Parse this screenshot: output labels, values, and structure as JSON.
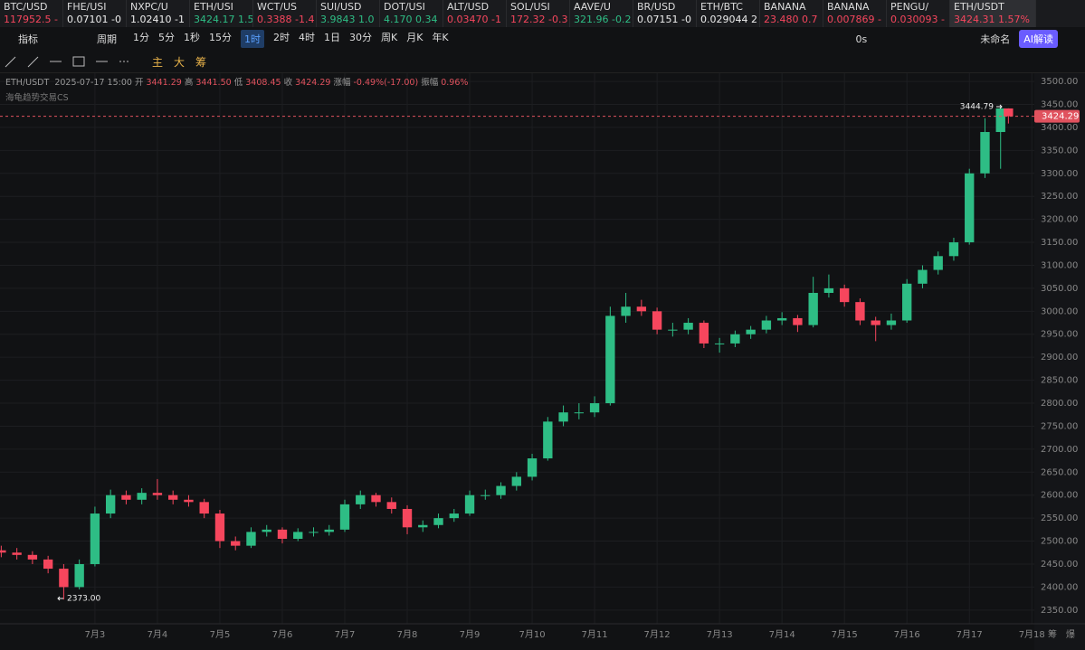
{
  "tabs": [
    {
      "symbol": "BTC/USD",
      "quote": "117952.5 -",
      "trend": "down"
    },
    {
      "symbol": "FHE/USI",
      "quote": "0.07101 -0",
      "trend": "flat"
    },
    {
      "symbol": "NXPC/U",
      "quote": "1.02410 -1",
      "trend": "flat"
    },
    {
      "symbol": "ETH/USI",
      "quote": "3424.17 1.5",
      "trend": "up"
    },
    {
      "symbol": "WCT/US",
      "quote": "0.3388 -1.4",
      "trend": "down"
    },
    {
      "symbol": "SUI/USD",
      "quote": "3.9843 1.0",
      "trend": "up"
    },
    {
      "symbol": "DOT/USI",
      "quote": "4.170 0.34",
      "trend": "up"
    },
    {
      "symbol": "ALT/USD",
      "quote": "0.03470 -1",
      "trend": "down"
    },
    {
      "symbol": "SOL/USI",
      "quote": "172.32 -0.3",
      "trend": "down"
    },
    {
      "symbol": "AAVE/U",
      "quote": "321.96 -0.2",
      "trend": "up"
    },
    {
      "symbol": "BR/USD",
      "quote": "0.07151 -0",
      "trend": "flat"
    },
    {
      "symbol": "ETH/BTC",
      "quote": "0.029044 2",
      "trend": "flat"
    },
    {
      "symbol": "BANANA",
      "quote": "23.480 0.7",
      "trend": "down"
    },
    {
      "symbol": "BANANA",
      "quote": "0.007869 -",
      "trend": "down"
    },
    {
      "symbol": "PENGU/",
      "quote": "0.030093 -",
      "trend": "down"
    },
    {
      "symbol": "ETH/USDT",
      "quote": "3424.31 1.57%",
      "trend": "down"
    }
  ],
  "toolbar": {
    "indicators": "指标",
    "period": "周期",
    "periods": [
      "1分",
      "5分",
      "1秒",
      "15分",
      "1时",
      "2时",
      "4时",
      "1日",
      "30分",
      "周K",
      "月K",
      "年K"
    ],
    "active_period_index": 4,
    "timer": "0s",
    "layout_name": "未命名",
    "ai_button": "AI解读",
    "drawing_tools": [
      "主",
      "大",
      "筹"
    ]
  },
  "info": {
    "pair": "ETH/USDT",
    "time": "2025-07-17 15:00",
    "open_label": "开",
    "open": "3441.29",
    "high_label": "高",
    "high": "3441.50",
    "low_label": "低",
    "low": "3408.45",
    "close_label": "收",
    "close": "3424.29",
    "change_label": "涨幅",
    "change": "-0.49%(-17.00)",
    "amplitude_label": "振幅",
    "amplitude": "0.96%",
    "indicator": "海龟趋势交易CS"
  },
  "chart_data": {
    "type": "candlestick",
    "up_color": "#2ebd85",
    "down_color": "#f6465d",
    "x": [
      1.5,
      1.75,
      2,
      2.25,
      2.5,
      2.75,
      3,
      3.25,
      3.5,
      3.75,
      4,
      4.25,
      4.5,
      4.75,
      5,
      5.25,
      5.5,
      5.75,
      6,
      6.25,
      6.5,
      6.75,
      7,
      7.25,
      7.5,
      7.75,
      8,
      8.25,
      8.5,
      8.75,
      9,
      9.25,
      9.5,
      9.75,
      10,
      10.25,
      10.5,
      10.75,
      11,
      11.25,
      11.5,
      11.75,
      12,
      12.25,
      12.5,
      12.75,
      13,
      13.25,
      13.5,
      13.75,
      14,
      14.25,
      14.5,
      14.75,
      15,
      15.25,
      15.5,
      15.75,
      16,
      16.25,
      16.5,
      16.75,
      17,
      17.25,
      17.5,
      17.625
    ],
    "candles": [
      [
        2480,
        2490,
        2465,
        2475
      ],
      [
        2475,
        2485,
        2460,
        2470
      ],
      [
        2470,
        2478,
        2450,
        2460
      ],
      [
        2460,
        2468,
        2430,
        2440
      ],
      [
        2440,
        2450,
        2373,
        2400
      ],
      [
        2400,
        2460,
        2395,
        2450
      ],
      [
        2450,
        2575,
        2445,
        2560
      ],
      [
        2560,
        2612,
        2550,
        2600
      ],
      [
        2600,
        2610,
        2580,
        2590
      ],
      [
        2590,
        2615,
        2580,
        2605
      ],
      [
        2605,
        2635,
        2590,
        2600
      ],
      [
        2600,
        2610,
        2580,
        2590
      ],
      [
        2590,
        2600,
        2575,
        2585
      ],
      [
        2585,
        2592,
        2550,
        2560
      ],
      [
        2560,
        2568,
        2485,
        2500
      ],
      [
        2500,
        2510,
        2480,
        2490
      ],
      [
        2490,
        2530,
        2485,
        2520
      ],
      [
        2520,
        2535,
        2510,
        2525
      ],
      [
        2525,
        2530,
        2495,
        2505
      ],
      [
        2505,
        2528,
        2500,
        2520
      ],
      [
        2520,
        2530,
        2510,
        2520
      ],
      [
        2520,
        2535,
        2512,
        2525
      ],
      [
        2525,
        2590,
        2520,
        2580
      ],
      [
        2580,
        2610,
        2570,
        2600
      ],
      [
        2600,
        2605,
        2575,
        2585
      ],
      [
        2585,
        2595,
        2560,
        2570
      ],
      [
        2570,
        2578,
        2515,
        2530
      ],
      [
        2530,
        2545,
        2520,
        2535
      ],
      [
        2535,
        2560,
        2528,
        2550
      ],
      [
        2550,
        2570,
        2542,
        2560
      ],
      [
        2560,
        2610,
        2555,
        2600
      ],
      [
        2600,
        2612,
        2590,
        2600
      ],
      [
        2600,
        2628,
        2592,
        2620
      ],
      [
        2620,
        2650,
        2610,
        2640
      ],
      [
        2640,
        2690,
        2632,
        2680
      ],
      [
        2680,
        2770,
        2675,
        2760
      ],
      [
        2760,
        2795,
        2750,
        2780
      ],
      [
        2780,
        2800,
        2765,
        2780
      ],
      [
        2780,
        2815,
        2770,
        2800
      ],
      [
        2800,
        3010,
        2795,
        2990
      ],
      [
        2990,
        3040,
        2975,
        3010
      ],
      [
        3010,
        3025,
        2990,
        3000
      ],
      [
        3000,
        3008,
        2950,
        2960
      ],
      [
        2960,
        2975,
        2945,
        2960
      ],
      [
        2960,
        2985,
        2950,
        2975
      ],
      [
        2975,
        2980,
        2920,
        2930
      ],
      [
        2930,
        2942,
        2910,
        2930
      ],
      [
        2930,
        2958,
        2922,
        2950
      ],
      [
        2950,
        2968,
        2940,
        2960
      ],
      [
        2960,
        2990,
        2952,
        2980
      ],
      [
        2980,
        2998,
        2970,
        2985
      ],
      [
        2985,
        2992,
        2955,
        2970
      ],
      [
        2970,
        3075,
        2965,
        3040
      ],
      [
        3040,
        3080,
        3030,
        3050
      ],
      [
        3050,
        3058,
        3010,
        3020
      ],
      [
        3020,
        3028,
        2970,
        2980
      ],
      [
        2980,
        2988,
        2935,
        2970
      ],
      [
        2970,
        2995,
        2960,
        2980
      ],
      [
        2980,
        3070,
        2975,
        3060
      ],
      [
        3060,
        3100,
        3050,
        3090
      ],
      [
        3090,
        3130,
        3080,
        3120
      ],
      [
        3120,
        3160,
        3110,
        3150
      ],
      [
        3150,
        3310,
        3145,
        3300
      ],
      [
        3300,
        3420,
        3290,
        3390
      ],
      [
        3390,
        3444.79,
        3310,
        3441.29
      ],
      [
        3441.29,
        3441.5,
        3408.45,
        3424.29
      ]
    ],
    "last_price": 3424.29,
    "high_marker": "3444.79",
    "low_marker": "2373.00",
    "xlim": [
      1.48,
      18.04
    ],
    "ylim": [
      2330,
      3510
    ],
    "grid": true,
    "xticks": [
      {
        "value": 3,
        "label": "7月3"
      },
      {
        "value": 4,
        "label": "7月4"
      },
      {
        "value": 5,
        "label": "7月5"
      },
      {
        "value": 6,
        "label": "7月6"
      },
      {
        "value": 7,
        "label": "7月7"
      },
      {
        "value": 8,
        "label": "7月8"
      },
      {
        "value": 9,
        "label": "7月9"
      },
      {
        "value": 10,
        "label": "7月10"
      },
      {
        "value": 11,
        "label": "7月11"
      },
      {
        "value": 12,
        "label": "7月12"
      },
      {
        "value": 13,
        "label": "7月13"
      },
      {
        "value": 14,
        "label": "7月14"
      },
      {
        "value": 15,
        "label": "7月15"
      },
      {
        "value": 16,
        "label": "7月16"
      },
      {
        "value": 17,
        "label": "7月17"
      },
      {
        "value": 18,
        "label": "7月18"
      }
    ],
    "yticks": [
      {
        "value": 2350,
        "label": "2350.00"
      },
      {
        "value": 2400,
        "label": "2400.00"
      },
      {
        "value": 2450,
        "label": "2450.00"
      },
      {
        "value": 2500,
        "label": "2500.00"
      },
      {
        "value": 2550,
        "label": "2550.00"
      },
      {
        "value": 2600,
        "label": "2600.00"
      },
      {
        "value": 2650,
        "label": "2650.00"
      },
      {
        "value": 2700,
        "label": "2700.00"
      },
      {
        "value": 2750,
        "label": "2750.00"
      },
      {
        "value": 2800,
        "label": "2800.00"
      },
      {
        "value": 2850,
        "label": "2850.00"
      },
      {
        "value": 2900,
        "label": "2900.00"
      },
      {
        "value": 2950,
        "label": "2950.00"
      },
      {
        "value": 3000,
        "label": "3000.00"
      },
      {
        "value": 3050,
        "label": "3050.00"
      },
      {
        "value": 3100,
        "label": "3100.00"
      },
      {
        "value": 3150,
        "label": "3150.00"
      },
      {
        "value": 3200,
        "label": "3200.00"
      },
      {
        "value": 3250,
        "label": "3250.00"
      },
      {
        "value": 3300,
        "label": "3300.00"
      },
      {
        "value": 3350,
        "label": "3350.00"
      },
      {
        "value": 3400,
        "label": "3400.00"
      },
      {
        "value": 3450,
        "label": "3450.00"
      },
      {
        "value": 3500,
        "label": "3500.00"
      }
    ],
    "corner_labels": [
      "筹",
      "爆"
    ]
  }
}
